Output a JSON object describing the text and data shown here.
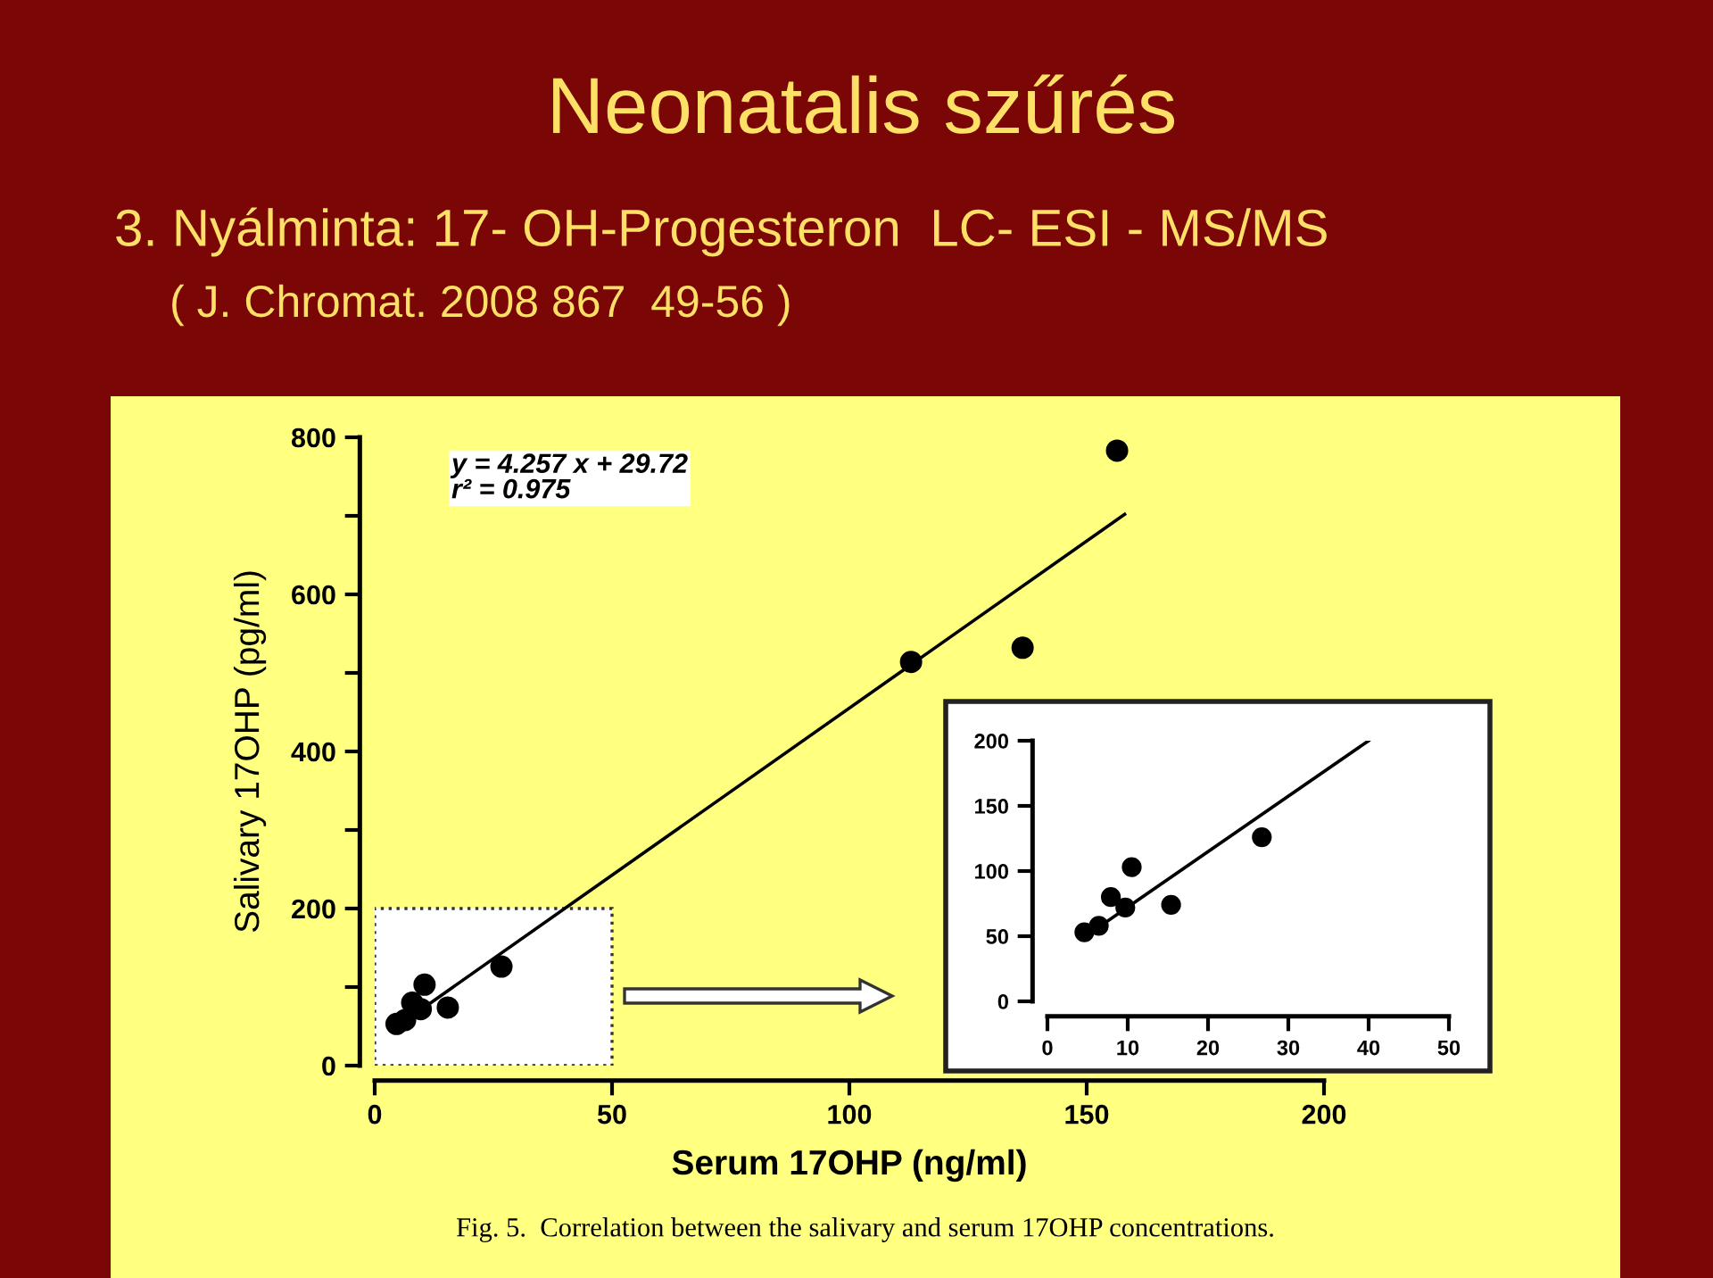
{
  "chart_data": [
    {
      "type": "scatter",
      "title": "Neonatalis szűrés",
      "subtitle": "3. Nyálminta: 17- OH-Progesteron  LC- ESI - MS/MS",
      "xlabel": "Serum 17OHP (ng/ml)",
      "ylabel": "Salivary 17OHP (pg/ml)",
      "annotations": [
        "( J. Chromat. 2008 867  49-56 )",
        "y = 4.257 x + 29.72\nr² = 0.975",
        "Fig. 5.  Correlation between the salivary and serum 17OHP concentrations."
      ],
      "xlim": [
        0,
        200
      ],
      "xticks": [
        0,
        50,
        100,
        150,
        200
      ],
      "ylim": [
        0,
        800
      ],
      "yticks": [
        0,
        {
          "value": 100,
          "label": null
        },
        200,
        {
          "value": 300,
          "label": null
        },
        400,
        {
          "value": 500,
          "label": null
        },
        600,
        {
          "value": 700,
          "label": null
        },
        800
      ],
      "marker": "circle",
      "grid": false,
      "series": [
        {
          "color": "#000000",
          "x": [
            4.6,
            6.4,
            7.9,
            9.7,
            10.5,
            15.4,
            26.7,
            113,
            136.5,
            156.4
          ],
          "values": [
            53,
            58,
            80,
            72,
            103,
            74,
            126,
            514,
            532,
            783
          ]
        },
        {
          "type": "line",
          "marker": "none",
          "color": "#000000",
          "x": [
            5,
            158
          ],
          "values": [
            51,
            702
          ]
        }
      ]
    },
    {
      "type": "scatter",
      "xlim": [
        0,
        50
      ],
      "xticks": [
        0,
        10,
        20,
        30,
        40,
        50
      ],
      "ylim": [
        0,
        200
      ],
      "yticks": [
        0,
        50,
        100,
        150,
        200
      ],
      "marker": "circle",
      "grid": false,
      "series": [
        {
          "color": "#000000",
          "x": [
            4.6,
            6.4,
            7.9,
            9.7,
            10.5,
            15.4,
            26.7
          ],
          "values": [
            53,
            58,
            80,
            72,
            103,
            74,
            126
          ]
        },
        {
          "type": "line",
          "marker": "none",
          "color": "#000000",
          "x": [
            5,
            40
          ],
          "values": [
            51,
            200
          ]
        }
      ]
    }
  ]
}
